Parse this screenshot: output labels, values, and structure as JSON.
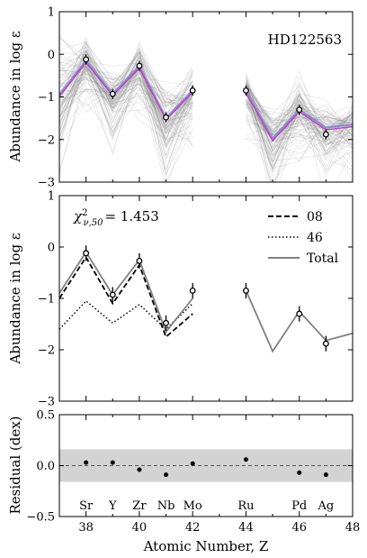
{
  "chart_data": [
    {
      "type": "line",
      "panel": "top",
      "annotation": "HD122563",
      "ylabel": "Abundance in log ε",
      "xlim": [
        37,
        48
      ],
      "ylim": [
        -3,
        1
      ],
      "yticks": [
        1,
        0,
        -1,
        -2,
        -3
      ],
      "observed": {
        "x": [
          38,
          39,
          40,
          41,
          42,
          44,
          46,
          47
        ],
        "y": [
          -0.12,
          -0.93,
          -0.27,
          -1.48,
          -0.85,
          -0.85,
          -1.3,
          -1.88
        ],
        "err": [
          0.12,
          0.12,
          0.12,
          0.12,
          0.12,
          0.12,
          0.12,
          0.12
        ]
      },
      "best_fit": {
        "x": [
          37,
          38,
          39,
          40,
          41,
          42
        ],
        "y": [
          -0.95,
          -0.15,
          -0.93,
          -0.28,
          -1.5,
          -0.85
        ],
        "x2": [
          44,
          45,
          46,
          47,
          48
        ],
        "y2": [
          -0.85,
          -1.98,
          -1.3,
          -1.72,
          -1.65
        ],
        "color": "#c040c0"
      },
      "samples_color": "#808080"
    },
    {
      "type": "line",
      "panel": "middle",
      "annotation_prefix": "χ",
      "annotation_sup": "2",
      "annotation_sub": "ν,50",
      "annotation_value": "= 1.453",
      "ylabel": "Abundance in log ε",
      "xlim": [
        37,
        48
      ],
      "ylim": [
        -3,
        1
      ],
      "yticks": [
        1,
        0,
        -1,
        -2,
        -3
      ],
      "series": [
        {
          "name": "08",
          "style": "dashed",
          "x": [
            37,
            38,
            39,
            40,
            41,
            42
          ],
          "y": [
            -1.0,
            -0.2,
            -1.1,
            -0.35,
            -1.75,
            -1.3
          ]
        },
        {
          "name": "46",
          "style": "dotted",
          "x": [
            37,
            38,
            39,
            40,
            41,
            42
          ],
          "y": [
            -1.6,
            -1.05,
            -1.48,
            -1.12,
            -1.6,
            -1.1
          ]
        },
        {
          "name": "Total",
          "style": "solid",
          "color": "#808080",
          "x": [
            37,
            38,
            39,
            40,
            41,
            42
          ],
          "y": [
            -0.9,
            -0.1,
            -0.93,
            -0.25,
            -1.65,
            -1.0
          ],
          "x2": [
            44,
            45,
            46,
            47,
            48
          ],
          "y2": [
            -0.85,
            -2.03,
            -1.25,
            -1.82,
            -1.68
          ]
        }
      ],
      "observed": {
        "x": [
          38,
          39,
          40,
          41,
          42,
          44,
          46,
          47
        ],
        "y": [
          -0.12,
          -0.93,
          -0.27,
          -1.48,
          -0.85,
          -0.85,
          -1.3,
          -1.88
        ],
        "err": [
          0.15,
          0.15,
          0.15,
          0.15,
          0.15,
          0.15,
          0.15,
          0.15
        ]
      },
      "legend_position": "top-right"
    },
    {
      "type": "scatter",
      "panel": "bottom",
      "ylabel": "Residual (dex)",
      "xlabel": "Atomic Number, Z",
      "xlim": [
        37,
        48
      ],
      "ylim": [
        -0.5,
        0.5
      ],
      "yticks": [
        0.5,
        0.0,
        -0.5
      ],
      "ytick_labels": [
        "0.5",
        "0.0",
        "−0.5"
      ],
      "xticks": [
        38,
        40,
        42,
        44,
        46,
        48
      ],
      "band": [
        -0.16,
        0.16
      ],
      "x": [
        38,
        39,
        40,
        41,
        42,
        44,
        46,
        47
      ],
      "y": [
        0.03,
        0.03,
        -0.04,
        -0.09,
        0.02,
        0.06,
        -0.07,
        -0.09
      ],
      "element_labels": [
        {
          "z": 38,
          "label": "Sr"
        },
        {
          "z": 39,
          "label": "Y"
        },
        {
          "z": 40,
          "label": "Zr"
        },
        {
          "z": 41,
          "label": "Nb"
        },
        {
          "z": 42,
          "label": "Mo"
        },
        {
          "z": 44,
          "label": "Ru"
        },
        {
          "z": 46,
          "label": "Pd"
        },
        {
          "z": 47,
          "label": "Ag"
        }
      ]
    }
  ]
}
